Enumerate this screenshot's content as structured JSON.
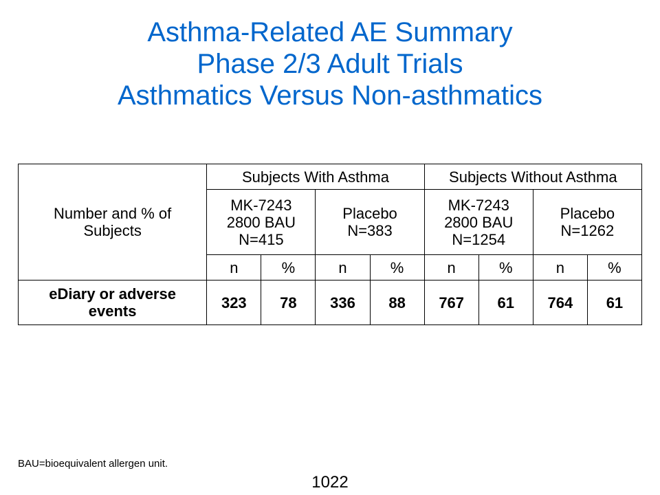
{
  "title": {
    "line1": "Asthma-Related AE Summary",
    "line2": "Phase 2/3 Adult Trials",
    "line3": "Asthmatics Versus Non-asthmatics"
  },
  "table": {
    "corner_label_line1": "Number and % of",
    "corner_label_line2": "Subjects",
    "groups": [
      {
        "label": "Subjects With Asthma",
        "arms": [
          {
            "line1": "MK-7243",
            "line2": "2800 BAU",
            "line3": "N=415"
          },
          {
            "line1": "Placebo",
            "line2": "N=383"
          }
        ]
      },
      {
        "label": "Subjects Without Asthma",
        "arms": [
          {
            "line1": "MK-7243",
            "line2": "2800 BAU",
            "line3": "N=1254"
          },
          {
            "line1": "Placebo",
            "line2": "N=1262"
          }
        ]
      }
    ],
    "subheaders": [
      "n",
      "%",
      "n",
      "%",
      "n",
      "%",
      "n",
      "%"
    ],
    "rows": [
      {
        "label_line1": "eDiary or adverse",
        "label_line2": "events",
        "values": [
          "323",
          "78",
          "336",
          "88",
          "767",
          "61",
          "764",
          "61"
        ]
      }
    ]
  },
  "footnote": "BAU=bioequivalent allergen unit.",
  "page_number": "1022",
  "colors": {
    "title": "#0066cc",
    "header_rule": "#2f6fc4"
  }
}
